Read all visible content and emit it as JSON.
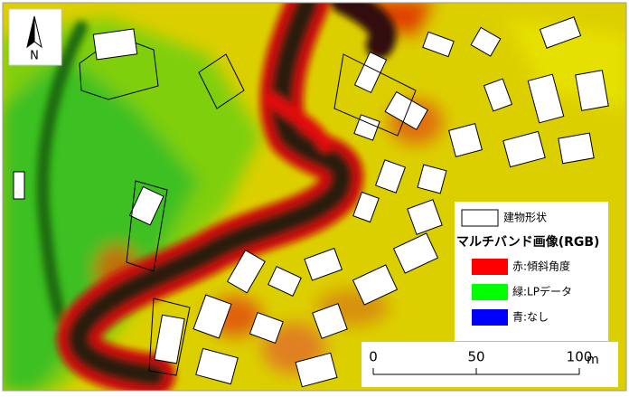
{
  "north_arrow": {
    "label": "N"
  },
  "legend": {
    "items": [
      {
        "label": "建物形状"
      }
    ],
    "title": "マルチバンド画像(RGB)",
    "bands": [
      {
        "color": "#ff0000",
        "label": "赤:傾斜角度"
      },
      {
        "color": "#00ff00",
        "label": "緑:LPデータ"
      },
      {
        "color": "#0000ff",
        "label": "青:なし"
      }
    ]
  },
  "scale_bar": {
    "ticks": [
      0,
      50,
      100
    ],
    "unit": "m"
  }
}
